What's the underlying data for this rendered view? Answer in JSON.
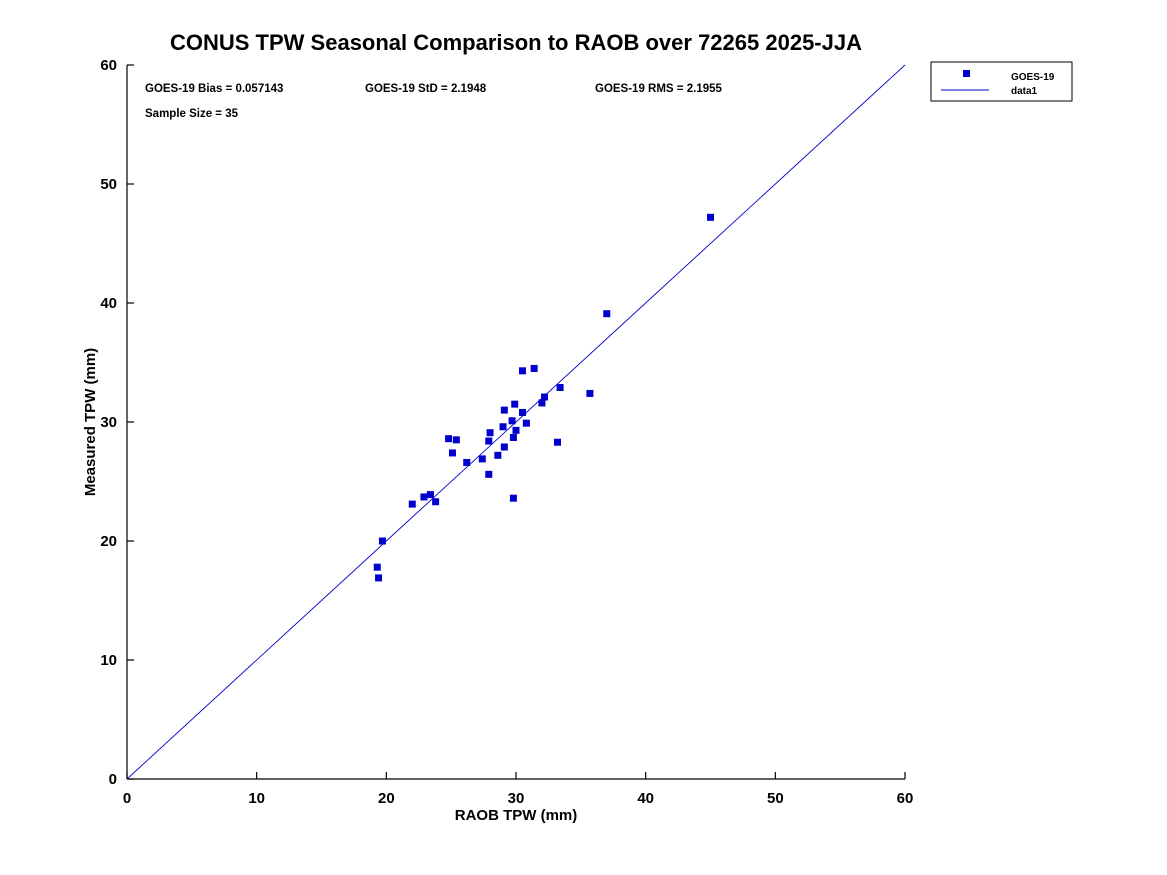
{
  "title": "CONUS TPW Seasonal Comparison to RAOB over 72265 2025-JJA",
  "annotations": {
    "bias": "GOES-19 Bias = 0.057143",
    "std": "GOES-19 StD = 2.1948",
    "rms": "GOES-19 RMS = 2.1955",
    "sample": "Sample Size = 35"
  },
  "legend": {
    "marker_label": "GOES-19",
    "line_label": "data1"
  },
  "colors": {
    "accent": "#0000CC",
    "axis": "#000000",
    "background": "#FFFFFF"
  },
  "chart_data": {
    "type": "scatter",
    "title": "CONUS TPW Seasonal Comparison to RAOB over 72265 2025-JJA",
    "xlabel": "RAOB TPW (mm)",
    "ylabel": "Measured TPW (mm)",
    "xlim": [
      0,
      60
    ],
    "ylim": [
      0,
      60
    ],
    "xticks": [
      0,
      10,
      20,
      30,
      40,
      50,
      60
    ],
    "yticks": [
      0,
      10,
      20,
      30,
      40,
      50,
      60
    ],
    "grid": false,
    "legend_position": "top-right",
    "stats": {
      "bias": 0.057143,
      "std": 2.1948,
      "rms": 2.1955,
      "sample_size": 35
    },
    "series": [
      {
        "name": "GOES-19",
        "type": "scatter",
        "marker": "square",
        "color": "#0000CC",
        "points": [
          [
            45.0,
            47.2
          ],
          [
            37.0,
            39.1
          ],
          [
            31.4,
            34.5
          ],
          [
            30.5,
            34.3
          ],
          [
            33.4,
            32.9
          ],
          [
            35.7,
            32.4
          ],
          [
            32.2,
            32.1
          ],
          [
            32.0,
            31.6
          ],
          [
            29.9,
            31.5
          ],
          [
            29.1,
            31.0
          ],
          [
            30.5,
            30.8
          ],
          [
            29.7,
            30.1
          ],
          [
            30.8,
            29.9
          ],
          [
            29.0,
            29.6
          ],
          [
            30.0,
            29.3
          ],
          [
            28.0,
            29.1
          ],
          [
            29.8,
            28.7
          ],
          [
            24.8,
            28.6
          ],
          [
            25.4,
            28.5
          ],
          [
            27.9,
            28.4
          ],
          [
            33.2,
            28.3
          ],
          [
            29.1,
            27.9
          ],
          [
            25.1,
            27.4
          ],
          [
            28.6,
            27.2
          ],
          [
            27.4,
            26.9
          ],
          [
            26.2,
            26.6
          ],
          [
            27.9,
            25.6
          ],
          [
            23.4,
            23.9
          ],
          [
            29.8,
            23.6
          ],
          [
            22.9,
            23.7
          ],
          [
            23.8,
            23.3
          ],
          [
            22.0,
            23.1
          ],
          [
            19.7,
            20.0
          ],
          [
            19.3,
            17.8
          ],
          [
            19.4,
            16.9
          ]
        ]
      },
      {
        "name": "data1",
        "type": "line",
        "color": "#0000CC",
        "points": [
          [
            0,
            0
          ],
          [
            60,
            60
          ]
        ]
      }
    ]
  }
}
